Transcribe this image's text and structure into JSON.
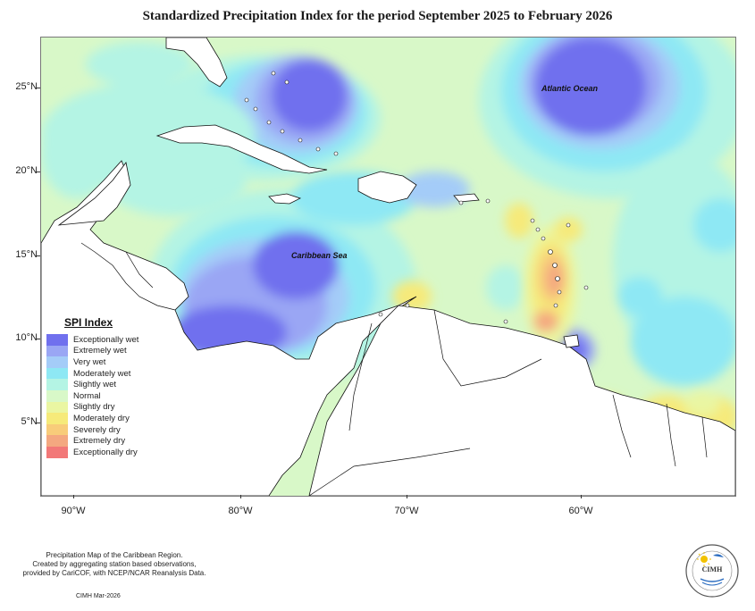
{
  "title": "Standardized Precipitation Index for the period September 2025 to February 2026",
  "axes": {
    "latitudes": [
      "25°N",
      "20°N",
      "15°N",
      "10°N",
      "5°N"
    ],
    "longitudes": [
      "90°W",
      "80°W",
      "70°W",
      "60°W"
    ]
  },
  "labels": {
    "atlantic": "Atlantic Ocean",
    "caribbean": "Caribbean Sea"
  },
  "legend": {
    "title": "SPI Index",
    "items": [
      {
        "label": "Exceptionally wet",
        "color": "#7070ee"
      },
      {
        "label": "Extremely wet",
        "color": "#9aa6f4"
      },
      {
        "label": "Very wet",
        "color": "#a4ccf8"
      },
      {
        "label": "Moderately wet",
        "color": "#8ee8f4"
      },
      {
        "label": "Slightly wet",
        "color": "#b4f4e4"
      },
      {
        "label": "Normal",
        "color": "#d8f8c8"
      },
      {
        "label": "Slightly dry",
        "color": "#eaf6a2"
      },
      {
        "label": "Moderately dry",
        "color": "#f6ea7a"
      },
      {
        "label": "Severely dry",
        "color": "#f8cc7a"
      },
      {
        "label": "Extremely dry",
        "color": "#f4a880"
      },
      {
        "label": "Exceptionally dry",
        "color": "#f27878"
      }
    ]
  },
  "footer": {
    "line1": "Precipitation Map of the Caribbean Region.",
    "line2": "Created by aggregating station based observations,",
    "line3": "provided by CariCOF, with NCEP/NCAR Reanalysis Data.",
    "date": "CIMH Mar-2026"
  },
  "logo": {
    "abbr": "CIMH",
    "icon": "sun-logo-icon"
  }
}
